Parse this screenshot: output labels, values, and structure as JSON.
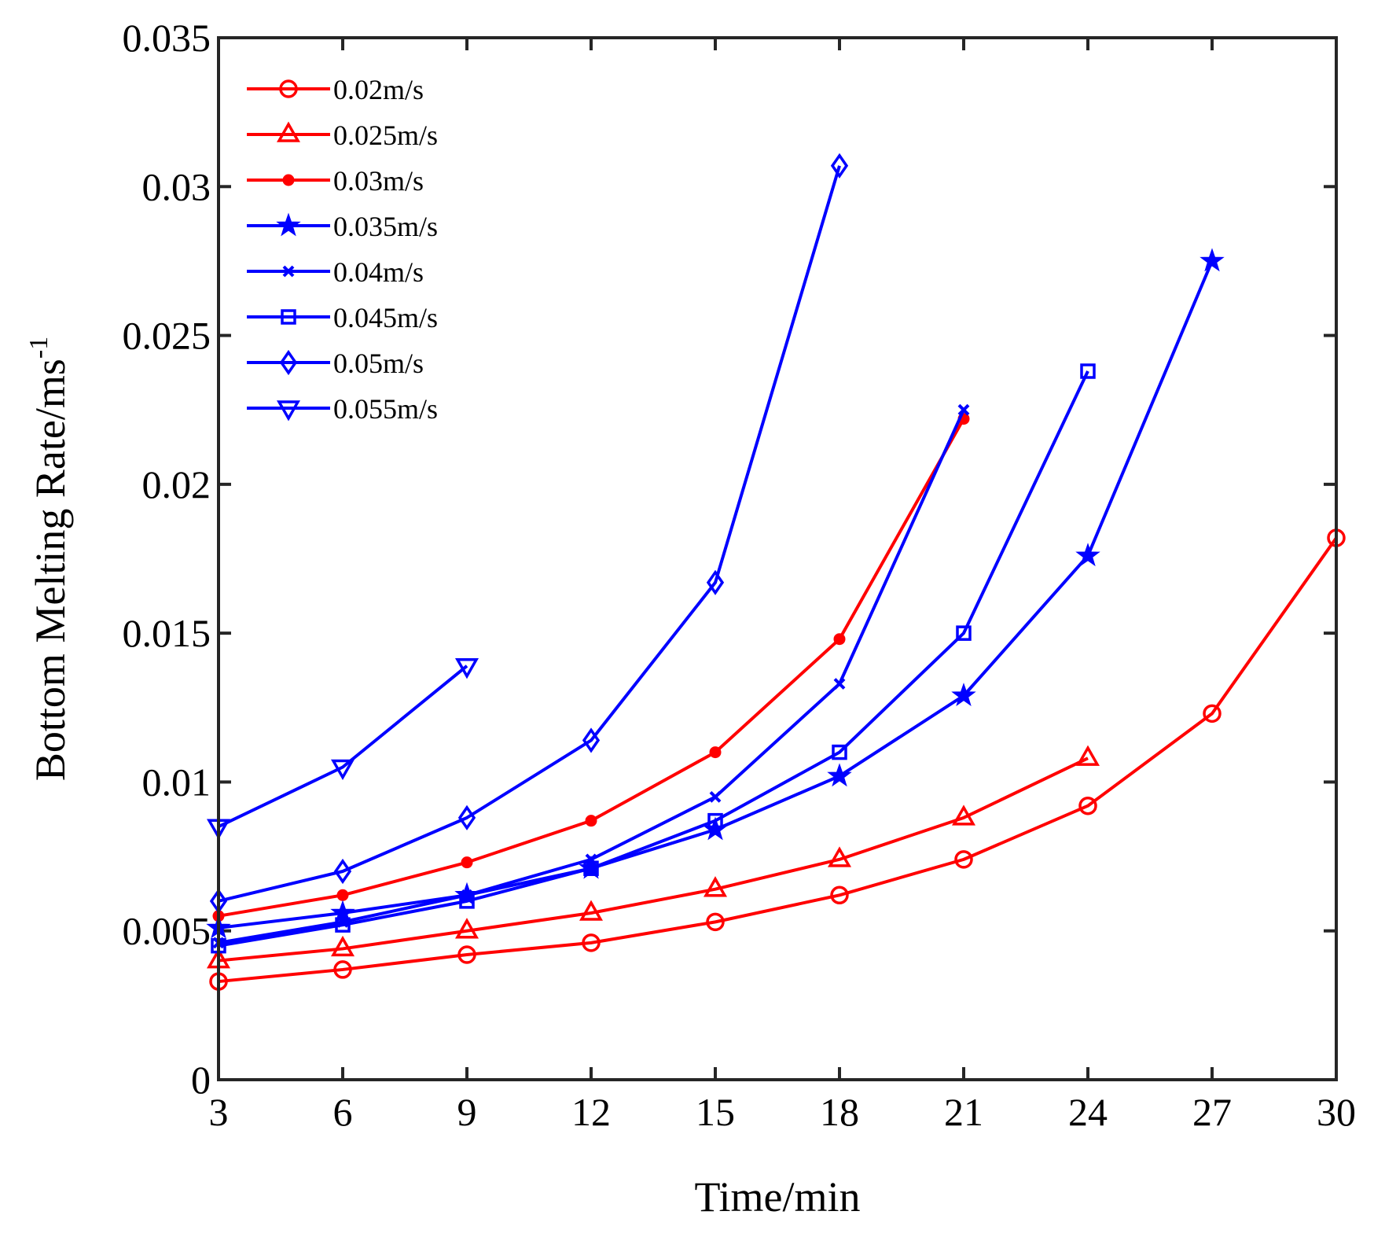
{
  "chart_data": {
    "type": "line",
    "xlabel": "Time/min",
    "ylabel": "Bottom Melting Rate/ms",
    "ylabel_superscript": "-1",
    "xlim": [
      3,
      30
    ],
    "ylim": [
      0,
      0.035
    ],
    "xticks": [
      3,
      6,
      9,
      12,
      15,
      18,
      21,
      24,
      27,
      30
    ],
    "xtick_labels": [
      "3",
      "6",
      "9",
      "12",
      "15",
      "18",
      "21",
      "24",
      "27",
      "30"
    ],
    "yticks": [
      0,
      0.005,
      0.01,
      0.015,
      0.02,
      0.025,
      0.03,
      0.035
    ],
    "ytick_labels": [
      "0",
      "0.005",
      "0.01",
      "0.015",
      "0.02",
      "0.025",
      "0.03",
      "0.035"
    ],
    "grid": false,
    "legend_position": "top-left",
    "series": [
      {
        "name": "0.02m/s",
        "color": "#ff0000",
        "marker": "circle-open",
        "x": [
          3,
          6,
          9,
          12,
          15,
          18,
          21,
          24,
          27,
          30
        ],
        "y": [
          0.0033,
          0.0037,
          0.0042,
          0.0046,
          0.0053,
          0.0062,
          0.0074,
          0.0092,
          0.0123,
          0.0182
        ]
      },
      {
        "name": "0.025m/s",
        "color": "#ff0000",
        "marker": "triangle-up-open",
        "x": [
          3,
          6,
          9,
          12,
          15,
          18,
          21,
          24
        ],
        "y": [
          0.004,
          0.0044,
          0.005,
          0.0056,
          0.0064,
          0.0074,
          0.0088,
          0.0108
        ]
      },
      {
        "name": "0.03m/s",
        "color": "#ff0000",
        "marker": "dot",
        "x": [
          3,
          6,
          9,
          12,
          15,
          18,
          21
        ],
        "y": [
          0.0055,
          0.0062,
          0.0073,
          0.0087,
          0.011,
          0.0148,
          0.0222
        ]
      },
      {
        "name": "0.035m/s",
        "color": "#0000ff",
        "marker": "star",
        "x": [
          3,
          6,
          9,
          12,
          15,
          18,
          21,
          24,
          27
        ],
        "y": [
          0.0051,
          0.0056,
          0.0062,
          0.0071,
          0.0084,
          0.0102,
          0.0129,
          0.0176,
          0.0275
        ]
      },
      {
        "name": "0.04m/s",
        "color": "#0000ff",
        "marker": "x-small",
        "x": [
          3,
          6,
          9,
          12,
          15,
          18,
          21
        ],
        "y": [
          0.0046,
          0.0053,
          0.0062,
          0.0074,
          0.0095,
          0.0133,
          0.0225
        ]
      },
      {
        "name": "0.045m/s",
        "color": "#0000ff",
        "marker": "square-open",
        "x": [
          3,
          6,
          9,
          12,
          15,
          18,
          21,
          24
        ],
        "y": [
          0.0045,
          0.0052,
          0.006,
          0.0071,
          0.0087,
          0.011,
          0.015,
          0.0238
        ]
      },
      {
        "name": "0.05m/s",
        "color": "#0000ff",
        "marker": "diamond-open",
        "x": [
          3,
          6,
          9,
          12,
          15,
          18
        ],
        "y": [
          0.006,
          0.007,
          0.0088,
          0.0114,
          0.0167,
          0.0307
        ]
      },
      {
        "name": "0.055m/s",
        "color": "#0000ff",
        "marker": "triangle-down-open",
        "x": [
          3,
          6,
          9
        ],
        "y": [
          0.0085,
          0.0105,
          0.0139
        ]
      }
    ]
  }
}
